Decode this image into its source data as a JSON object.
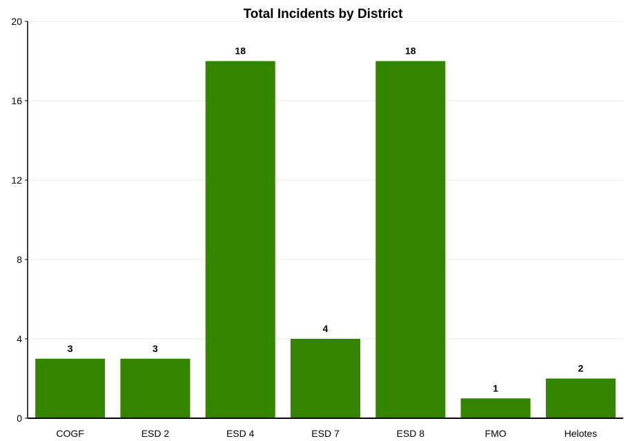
{
  "chart_data": {
    "type": "bar",
    "title": "Total Incidents by District",
    "xlabel": "",
    "ylabel": "",
    "categories": [
      "COGF",
      "ESD 2",
      "ESD 4",
      "ESD 7",
      "ESD 8",
      "FMO",
      "Helotes"
    ],
    "values": [
      3,
      3,
      18,
      4,
      18,
      1,
      2
    ],
    "data_labels": [
      "3",
      "3",
      "18",
      "4",
      "18",
      "1",
      "2"
    ],
    "ylim": [
      0,
      20
    ],
    "yticks": [
      0,
      4,
      8,
      12,
      16,
      20
    ],
    "ytick_labels": [
      "0",
      "4",
      "8",
      "12",
      "16",
      "20"
    ],
    "grid": true,
    "legend": "none",
    "colors": {
      "bar": "#338500",
      "gridline": "#e8e8e8",
      "axis": "#000000"
    }
  }
}
